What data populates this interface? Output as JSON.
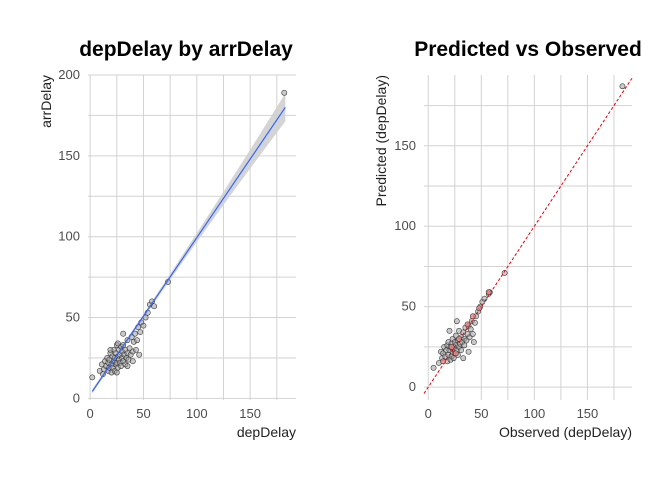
{
  "chart_data": [
    {
      "type": "scatter",
      "title": "depDelay by arrDelay",
      "xlabel": "depDelay",
      "ylabel": "arrDelay",
      "xlim": [
        -2,
        193
      ],
      "ylim": [
        -1,
        200
      ],
      "xticks": [
        0,
        50,
        100,
        150
      ],
      "yticks": [
        0,
        50,
        100,
        150,
        200
      ],
      "grid": true,
      "smooth": {
        "method": "linear fit with confidence band",
        "color": "#3366ff",
        "band_color": "#cfcfcf",
        "x": [
          2,
          183
        ],
        "y": [
          4.3,
          180
        ]
      },
      "points": [
        [
          2,
          13
        ],
        [
          9,
          17
        ],
        [
          11,
          21
        ],
        [
          12,
          15
        ],
        [
          13,
          18
        ],
        [
          14,
          23
        ],
        [
          15,
          20
        ],
        [
          16,
          25
        ],
        [
          17,
          17
        ],
        [
          17,
          22
        ],
        [
          18,
          19
        ],
        [
          18,
          24
        ],
        [
          19,
          28
        ],
        [
          20,
          21
        ],
        [
          20,
          16
        ],
        [
          21,
          26
        ],
        [
          21,
          19
        ],
        [
          22,
          23
        ],
        [
          22,
          30
        ],
        [
          23,
          17
        ],
        [
          23,
          25
        ],
        [
          24,
          28
        ],
        [
          24,
          21
        ],
        [
          25,
          22
        ],
        [
          25,
          33
        ],
        [
          26,
          26
        ],
        [
          26,
          19
        ],
        [
          27,
          24
        ],
        [
          27,
          30
        ],
        [
          28,
          22
        ],
        [
          28,
          27
        ],
        [
          29,
          32
        ],
        [
          29,
          20
        ],
        [
          30,
          25
        ],
        [
          30,
          29
        ],
        [
          31,
          23
        ],
        [
          31,
          33
        ],
        [
          32,
          27
        ],
        [
          33,
          21
        ],
        [
          33,
          30
        ],
        [
          34,
          25
        ],
        [
          35,
          28
        ],
        [
          35,
          36
        ],
        [
          36,
          24
        ],
        [
          37,
          31
        ],
        [
          38,
          27
        ],
        [
          39,
          38
        ],
        [
          40,
          29
        ],
        [
          40,
          23
        ],
        [
          41,
          35
        ],
        [
          42,
          40
        ],
        [
          43,
          30
        ],
        [
          44,
          36
        ],
        [
          45,
          44
        ],
        [
          46,
          27
        ],
        [
          47,
          41
        ],
        [
          48,
          47
        ],
        [
          50,
          45
        ],
        [
          52,
          50
        ],
        [
          54,
          53
        ],
        [
          56,
          58
        ],
        [
          58,
          60
        ],
        [
          60,
          57
        ],
        [
          73,
          72
        ],
        [
          182,
          189
        ],
        [
          19,
          30
        ],
        [
          25,
          16
        ],
        [
          31,
          40
        ],
        [
          35,
          20
        ],
        [
          26,
          34
        ]
      ]
    },
    {
      "type": "scatter",
      "title": "Predicted vs Observed",
      "xlabel": "Observed (depDelay)",
      "ylabel": "Predicted (depDelay)",
      "xlim": [
        -4,
        192
      ],
      "ylim": [
        -8,
        194
      ],
      "xticks": [
        0,
        50,
        100,
        150
      ],
      "yticks": [
        0,
        50,
        100,
        150
      ],
      "grid": true,
      "reference_line": {
        "type": "identity",
        "color": "#e8000b",
        "style": "dashed"
      },
      "highlight_color": "#f08080",
      "points": [
        [
          5,
          12
        ],
        [
          10,
          15
        ],
        [
          12,
          22
        ],
        [
          13,
          18
        ],
        [
          14,
          21
        ],
        [
          15,
          25
        ],
        [
          16,
          19
        ],
        [
          17,
          23
        ],
        [
          18,
          16
        ],
        [
          18,
          26
        ],
        [
          19,
          20
        ],
        [
          19,
          28
        ],
        [
          20,
          23
        ],
        [
          21,
          17
        ],
        [
          21,
          25
        ],
        [
          22,
          27
        ],
        [
          22,
          19
        ],
        [
          23,
          22
        ],
        [
          23,
          30
        ],
        [
          24,
          24
        ],
        [
          24,
          18
        ],
        [
          25,
          28
        ],
        [
          25,
          21
        ],
        [
          26,
          26
        ],
        [
          26,
          32
        ],
        [
          27,
          23
        ],
        [
          28,
          29
        ],
        [
          28,
          20
        ],
        [
          29,
          25
        ],
        [
          29,
          35
        ],
        [
          30,
          27
        ],
        [
          31,
          31
        ],
        [
          31,
          23
        ],
        [
          32,
          28
        ],
        [
          33,
          34
        ],
        [
          34,
          26
        ],
        [
          34,
          30
        ],
        [
          35,
          37
        ],
        [
          36,
          29
        ],
        [
          37,
          33
        ],
        [
          38,
          38
        ],
        [
          39,
          31
        ],
        [
          40,
          36
        ],
        [
          41,
          41
        ],
        [
          42,
          33
        ],
        [
          44,
          40
        ],
        [
          45,
          44
        ],
        [
          47,
          47
        ],
        [
          49,
          50
        ],
        [
          51,
          53
        ],
        [
          53,
          55
        ],
        [
          57,
          58
        ],
        [
          58,
          59
        ],
        [
          72,
          71
        ],
        [
          183,
          187
        ],
        [
          20,
          35
        ],
        [
          27,
          41
        ],
        [
          33,
          18
        ],
        [
          38,
          22
        ],
        [
          43,
          28
        ]
      ],
      "highlighted": [
        [
          14,
          16
        ],
        [
          22,
          25
        ],
        [
          29,
          30
        ],
        [
          37,
          39
        ],
        [
          42,
          44
        ],
        [
          48,
          49
        ],
        [
          57,
          59
        ],
        [
          26,
          21
        ]
      ]
    }
  ]
}
